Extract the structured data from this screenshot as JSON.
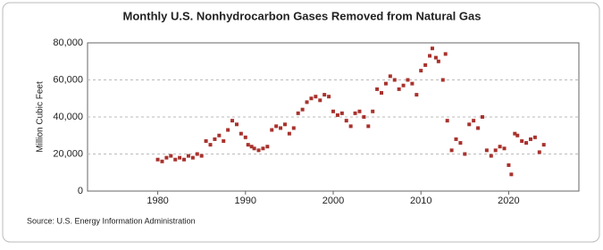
{
  "chart_data": {
    "type": "scatter",
    "title": "Monthly U.S. Nonhydrocarbon Gases Removed from Natural Gas",
    "y_label": "Million Cubic Feet",
    "source": "Source: U.S. Energy Information Administration",
    "color": "#a8322d",
    "grid": true,
    "xlim": [
      1972,
      2028
    ],
    "xticks": [
      1980,
      1990,
      2000,
      2010,
      2020
    ],
    "ylim": [
      0,
      80000
    ],
    "yticks": [
      0,
      {
        "value": 20000,
        "label": "20,000"
      },
      {
        "value": 40000,
        "label": "40,000"
      },
      {
        "value": 60000,
        "label": "60,000"
      },
      {
        "value": 80000,
        "label": "80,000"
      }
    ],
    "x": [
      1980,
      1980.5,
      1981,
      1981.5,
      1982,
      1982.5,
      1983,
      1983.5,
      1984,
      1984.5,
      1985,
      1985.5,
      1986,
      1986.5,
      1987,
      1987.5,
      1988,
      1988.5,
      1989,
      1989.5,
      1990,
      1990.3,
      1990.7,
      1991,
      1991.5,
      1992,
      1992.5,
      1993,
      1993.5,
      1994,
      1994.5,
      1995,
      1995.5,
      1996,
      1996.5,
      1997,
      1997.5,
      1998,
      1998.5,
      1999,
      1999.5,
      2000,
      2000.5,
      2001,
      2001.5,
      2002,
      2002.5,
      2003,
      2003.5,
      2004,
      2004.5,
      2005,
      2005.5,
      2006,
      2006.5,
      2007,
      2007.5,
      2008,
      2008.5,
      2009,
      2009.5,
      2010,
      2010.5,
      2011,
      2011.3,
      2011.7,
      2012,
      2012.5,
      2012.8,
      2013,
      2013.5,
      2014,
      2014.5,
      2015,
      2015.5,
      2016,
      2016.5,
      2017,
      2017.5,
      2018,
      2018.5,
      2019,
      2019.5,
      2020,
      2020.3,
      2020.7,
      2021,
      2021.5,
      2022,
      2022.5,
      2023,
      2023.5,
      2024
    ],
    "values": [
      17000,
      16000,
      18000,
      19000,
      17000,
      18000,
      17000,
      19000,
      18000,
      20000,
      19000,
      27000,
      25000,
      28000,
      30000,
      27000,
      33000,
      38000,
      36000,
      31000,
      29000,
      25000,
      24000,
      23000,
      22000,
      23000,
      24000,
      33000,
      35000,
      34000,
      36000,
      31000,
      34000,
      42000,
      44000,
      48000,
      50000,
      51000,
      49000,
      52000,
      51000,
      43000,
      41000,
      42000,
      38000,
      35000,
      42000,
      43000,
      40000,
      35000,
      43000,
      55000,
      53000,
      58000,
      62000,
      60000,
      55000,
      57000,
      60000,
      58000,
      52000,
      65000,
      68000,
      73000,
      77000,
      72000,
      70000,
      60000,
      74000,
      38000,
      22000,
      28000,
      26000,
      20000,
      36000,
      38000,
      34000,
      40000,
      22000,
      19000,
      22000,
      24000,
      23000,
      14000,
      9000,
      31000,
      30000,
      27000,
      26000,
      28000,
      29000,
      21000,
      25000
    ]
  }
}
